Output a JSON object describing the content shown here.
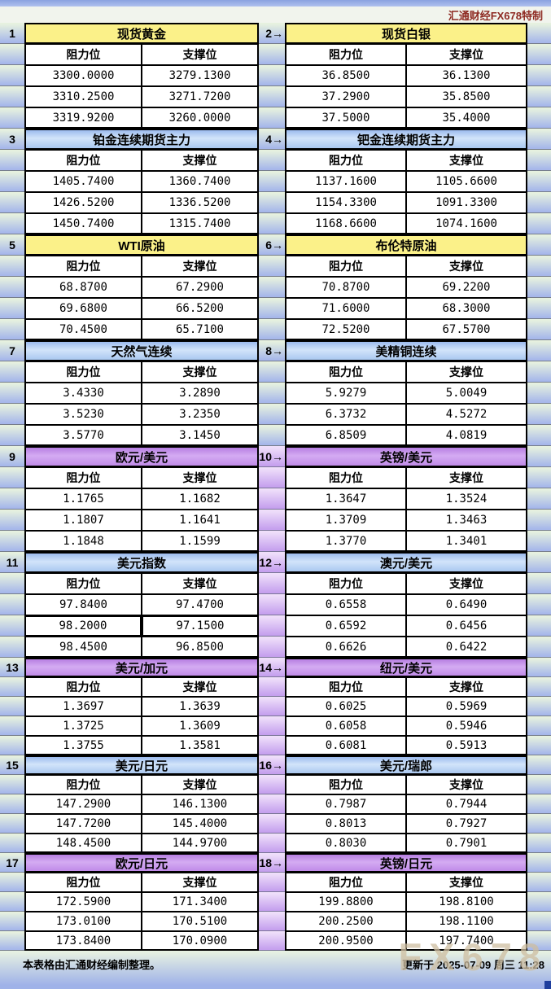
{
  "header": {
    "brand": "汇通财经FX678特制"
  },
  "columns": {
    "resistance": "阻力位",
    "support": "支撑位"
  },
  "footer": {
    "note": "本表格由汇通财经编制整理。",
    "updated": "更新于 2025-07-09 周三 11:28",
    "watermark": "FX678"
  },
  "colors": {
    "yellow_header": "#fbf189",
    "blue_header": "#aac8f0",
    "purple_header": "#c08ae8",
    "stripe_green_top": "#e6f1df",
    "stripe_blue_bottom": "#a6b7ea",
    "stripe_purple_top": "#efdffa",
    "stripe_purple_bottom": "#c5a0ee",
    "brand_red": "#8e2a22",
    "watermark_tan": "#cebea0",
    "cell_bg": "#ffffff",
    "grid_line": "#000000"
  },
  "pairs": [
    {
      "theme": "yellow",
      "gutter": "green",
      "left": {
        "tag": "1",
        "title": "现货黄金",
        "rows": [
          [
            "3300.0000",
            "3279.1300"
          ],
          [
            "3310.2500",
            "3271.7200"
          ],
          [
            "3319.9200",
            "3260.0000"
          ]
        ]
      },
      "right": {
        "tag": "2→",
        "title": "现货白银",
        "rows": [
          [
            "36.8500",
            "36.1300"
          ],
          [
            "37.2900",
            "35.8500"
          ],
          [
            "37.5000",
            "35.4000"
          ]
        ]
      }
    },
    {
      "theme": "blue",
      "gutter": "green",
      "left": {
        "tag": "3",
        "title": "铂金连续期货主力",
        "rows": [
          [
            "1405.7400",
            "1360.7400"
          ],
          [
            "1426.5200",
            "1336.5200"
          ],
          [
            "1450.7400",
            "1315.7400"
          ]
        ]
      },
      "right": {
        "tag": "4→",
        "title": "钯金连续期货主力",
        "rows": [
          [
            "1137.1600",
            "1105.6600"
          ],
          [
            "1154.3300",
            "1091.3300"
          ],
          [
            "1168.6600",
            "1074.1600"
          ]
        ]
      }
    },
    {
      "theme": "yellow",
      "gutter": "green",
      "left": {
        "tag": "5",
        "title": "WTI原油",
        "rows": [
          [
            "68.8700",
            "67.2900"
          ],
          [
            "69.6800",
            "66.5200"
          ],
          [
            "70.4500",
            "65.7100"
          ]
        ]
      },
      "right": {
        "tag": "6→",
        "title": "布伦特原油",
        "rows": [
          [
            "70.8700",
            "69.2200"
          ],
          [
            "71.6000",
            "68.3000"
          ],
          [
            "72.5200",
            "67.5700"
          ]
        ]
      }
    },
    {
      "theme": "blue",
      "gutter": "green",
      "left": {
        "tag": "7",
        "title": "天然气连续",
        "rows": [
          [
            "3.4330",
            "3.2890"
          ],
          [
            "3.5230",
            "3.2350"
          ],
          [
            "3.5770",
            "3.1450"
          ]
        ]
      },
      "right": {
        "tag": "8→",
        "title": "美精铜连续",
        "rows": [
          [
            "5.9279",
            "5.0049"
          ],
          [
            "6.3732",
            "4.5272"
          ],
          [
            "6.8509",
            "4.0819"
          ]
        ]
      }
    },
    {
      "theme": "purple",
      "gutter": "purple",
      "left": {
        "tag": "9",
        "title": "欧元/美元",
        "rows": [
          [
            "1.1765",
            "1.1682"
          ],
          [
            "1.1807",
            "1.1641"
          ],
          [
            "1.1848",
            "1.1599"
          ]
        ]
      },
      "right": {
        "tag": "10→",
        "title": "英镑/美元",
        "rows": [
          [
            "1.3647",
            "1.3524"
          ],
          [
            "1.3709",
            "1.3463"
          ],
          [
            "1.3770",
            "1.3401"
          ]
        ]
      }
    },
    {
      "theme": "blue",
      "gutter": "purple",
      "left": {
        "tag": "11",
        "title": "美元指数",
        "highlight_row": 1,
        "rows": [
          [
            "97.8400",
            "97.4700"
          ],
          [
            "98.2000",
            "97.1500"
          ],
          [
            "98.4500",
            "96.8500"
          ]
        ]
      },
      "right": {
        "tag": "12→",
        "title": "澳元/美元",
        "rows": [
          [
            "0.6558",
            "0.6490"
          ],
          [
            "0.6592",
            "0.6456"
          ],
          [
            "0.6626",
            "0.6422"
          ]
        ]
      }
    },
    {
      "theme": "purple",
      "gutter": "purple",
      "left": {
        "tag": "13",
        "title": "美元/加元",
        "rows": [
          [
            "1.3697",
            "1.3639"
          ],
          [
            "1.3725",
            "1.3609"
          ],
          [
            "1.3755",
            "1.3581"
          ]
        ]
      },
      "right": {
        "tag": "14→",
        "title": "纽元/美元",
        "rows": [
          [
            "0.6025",
            "0.5969"
          ],
          [
            "0.6058",
            "0.5946"
          ],
          [
            "0.6081",
            "0.5913"
          ]
        ]
      }
    },
    {
      "theme": "blue",
      "gutter": "purple",
      "left": {
        "tag": "15",
        "title": "美元/日元",
        "rows": [
          [
            "147.2900",
            "146.1300"
          ],
          [
            "147.7200",
            "145.4000"
          ],
          [
            "148.4500",
            "144.9700"
          ]
        ]
      },
      "right": {
        "tag": "16→",
        "title": "美元/瑞郎",
        "rows": [
          [
            "0.7987",
            "0.7944"
          ],
          [
            "0.8013",
            "0.7927"
          ],
          [
            "0.8030",
            "0.7901"
          ]
        ]
      }
    },
    {
      "theme": "purple",
      "gutter": "purple",
      "left": {
        "tag": "17",
        "title": "欧元/日元",
        "rows": [
          [
            "172.5900",
            "171.3400"
          ],
          [
            "173.0100",
            "170.5100"
          ],
          [
            "173.8400",
            "170.0900"
          ]
        ]
      },
      "right": {
        "tag": "18→",
        "title": "英镑/日元",
        "rows": [
          [
            "199.8800",
            "198.8100"
          ],
          [
            "200.2500",
            "198.1100"
          ],
          [
            "200.9500",
            "197.7400"
          ]
        ]
      }
    }
  ]
}
